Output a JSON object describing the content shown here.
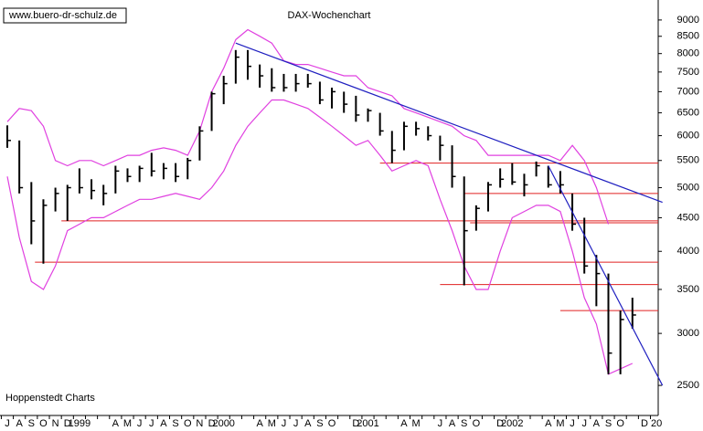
{
  "chart_data": {
    "type": "candlestick",
    "title": "DAX-Wochenchart",
    "source_url": "www.buero-dr-schulz.de",
    "footer": "Hoppenstedt Charts",
    "categories": [
      "J",
      "A",
      "S",
      "O",
      "N",
      "D",
      "1999",
      null,
      null,
      "A",
      "M",
      "J",
      "J",
      "A",
      "S",
      "O",
      "N",
      "D",
      "2000",
      null,
      null,
      "A",
      "M",
      "J",
      "J",
      "A",
      "S",
      "O",
      null,
      "D",
      "2001",
      null,
      null,
      "A",
      "M",
      null,
      "J",
      "A",
      "S",
      "O",
      null,
      "D",
      "2002",
      null,
      null,
      "A",
      "M",
      "J",
      "J",
      "A",
      "S",
      "O",
      null,
      "D",
      "20"
    ],
    "high": [
      6220,
      5900,
      5100,
      4800,
      5000,
      5050,
      5350,
      5150,
      5050,
      5400,
      5350,
      5400,
      5650,
      5450,
      5450,
      5550,
      6200,
      7000,
      7400,
      8100,
      8100,
      7700,
      7600,
      7450,
      7450,
      7450,
      7250,
      7100,
      7000,
      6900,
      6600,
      6500,
      6100,
      6300,
      6300,
      6200,
      6000,
      5800,
      5200,
      4700,
      5100,
      5350,
      5450,
      5250,
      5480,
      5400,
      5300,
      4900,
      4500,
      3950,
      3700,
      3250,
      3400,
      null,
      null
    ],
    "low": [
      5750,
      4900,
      4100,
      3830,
      4600,
      4450,
      4900,
      4800,
      4700,
      4900,
      5100,
      5100,
      5200,
      5150,
      5100,
      5150,
      5500,
      6100,
      6700,
      7200,
      7300,
      7100,
      7000,
      7000,
      7000,
      7100,
      6700,
      6600,
      6500,
      6300,
      6300,
      6000,
      5450,
      5700,
      6000,
      5900,
      5500,
      5000,
      3550,
      4300,
      4600,
      5000,
      5050,
      4850,
      5200,
      5000,
      4900,
      4300,
      3700,
      3300,
      2600,
      2600,
      3050,
      null,
      null
    ],
    "close": [
      5900,
      5000,
      4450,
      4700,
      4900,
      5000,
      5000,
      4950,
      4900,
      5300,
      5200,
      5350,
      5300,
      5350,
      5200,
      5500,
      6100,
      6950,
      7200,
      7900,
      7650,
      7400,
      7100,
      7100,
      7200,
      7200,
      6800,
      7000,
      6700,
      6450,
      6550,
      6100,
      5700,
      6200,
      6150,
      6000,
      5800,
      5200,
      4300,
      4650,
      5050,
      5150,
      5100,
      5050,
      5400,
      5050,
      5050,
      4400,
      3800,
      3700,
      2800,
      3150,
      3200,
      null,
      null
    ],
    "color": "#000000",
    "bands": [
      {
        "color": "#e040e0",
        "values": [
          6300,
          6600,
          6550,
          6200,
          5500,
          5400,
          5500,
          5500,
          5400,
          5500,
          5600,
          5600,
          5700,
          5750,
          5700,
          5600,
          6100,
          7000,
          7600,
          8400,
          8700,
          8500,
          8300,
          7800,
          7700,
          7700,
          7600,
          7500,
          7400,
          7400,
          7100,
          7000,
          6900,
          6600,
          6500,
          6400,
          6300,
          6200,
          6000,
          5900,
          5600,
          5600,
          5600,
          5600,
          5600,
          5600,
          5500,
          5800,
          5500,
          5000,
          4400,
          null,
          null,
          null,
          null
        ]
      },
      {
        "color": "#e040e0",
        "values": [
          5200,
          4200,
          3600,
          3500,
          3800,
          4300,
          4400,
          4500,
          4500,
          4600,
          4700,
          4800,
          4800,
          4850,
          4900,
          4850,
          4800,
          5000,
          5300,
          5800,
          6200,
          6500,
          6800,
          6800,
          6700,
          6600,
          6400,
          6200,
          6000,
          5800,
          5900,
          5600,
          5300,
          5400,
          5500,
          5400,
          4800,
          4300,
          3800,
          3500,
          3500,
          4000,
          4500,
          4600,
          4700,
          4700,
          4600,
          4000,
          3400,
          3100,
          2600,
          2650,
          2700,
          null,
          null
        ]
      }
    ],
    "trendlines": [
      {
        "color": "#2020c0",
        "from": [
          19,
          8300
        ],
        "to": [
          54.5,
          4750
        ]
      },
      {
        "color": "#2020c0",
        "from": [
          45,
          5400
        ],
        "to": [
          54.5,
          2500
        ]
      }
    ],
    "levels": [
      {
        "color": "#e02020",
        "value": 5450,
        "start": 31
      },
      {
        "color": "#e02020",
        "value": 4900,
        "start": 38
      },
      {
        "color": "#e02020",
        "value": 4450,
        "start": 4.5
      },
      {
        "color": "#e02020",
        "value": 4420,
        "start": 38.5
      },
      {
        "color": "#e02020",
        "value": 3850,
        "start": 2.3
      },
      {
        "color": "#e02020",
        "value": 3560,
        "start": 36
      },
      {
        "color": "#e02020",
        "value": 3250,
        "start": 46
      }
    ],
    "log_scale": true,
    "ylim": [
      2250,
      9500
    ],
    "yticks": [
      2500,
      3000,
      3500,
      4000,
      4500,
      5000,
      5500,
      6000,
      6500,
      7000,
      7500,
      8000,
      8500,
      9000
    ]
  }
}
